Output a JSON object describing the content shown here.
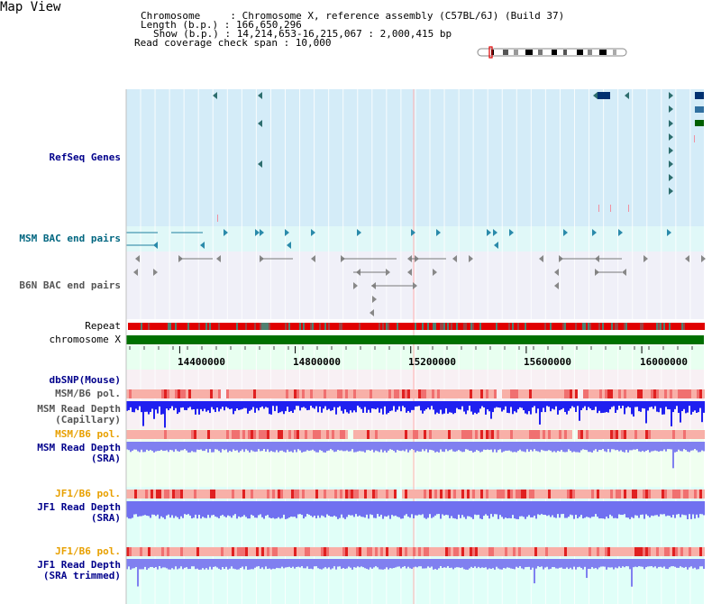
{
  "map_title": "Map View",
  "header": {
    "line1": "Chromosome     : Chromosome X, reference assembly (C57BL/6J) (Build 37)",
    "line2": "Length (b.p.) : 166,650,296",
    "line3": "Show (b.p.) : 14,214,653-16,215,067 : 2,000,415 bp",
    "line4": "Read coverage check span : 10,000"
  },
  "tracks": {
    "refseq": "RefSeq Genes",
    "msm_bac": "MSM BAC end pairs",
    "b6n_bac": "B6N BAC end pairs",
    "repeat": "Repeat",
    "chromosome": "chromosome X",
    "dbsnp": "dbSNP(Mouse)",
    "msm_b6_pol_1": "MSM/B6 pol.",
    "msm_read_depth_cap_1": "MSM Read Depth",
    "msm_read_depth_cap_2": "(Capillary)",
    "msm_b6_pol_2": "MSM/B6 pol.",
    "msm_read_depth_sra_1": "MSM Read Depth",
    "msm_read_depth_sra_2": "(SRA)",
    "jf1_b6_pol_1": "JF1/B6 pol.",
    "jf1_read_depth_sra_1": "JF1 Read Depth",
    "jf1_read_depth_sra_2": "(SRA)",
    "jf1_b6_pol_2": "JF1/B6 pol.",
    "jf1_read_depth_trim_1": "JF1 Read Depth",
    "jf1_read_depth_trim_2": "(SRA trimmed)"
  },
  "axis": {
    "ticks": [
      "14400000",
      "14800000",
      "15200000",
      "15600000",
      "16000000"
    ],
    "tick_values": [
      14400000,
      14800000,
      15200000,
      15600000,
      16000000
    ],
    "range": [
      14214653,
      16215067
    ]
  },
  "colors": {
    "refseq_bg": "#d4ecf8",
    "msm_bac_bg": "#e0f8f8",
    "b6n_bac_bg": "#f0f0f8",
    "chromosome_bar": "#007000",
    "depth_blue": "#2020f0",
    "depth_light": "#7070f0",
    "pol_red": "#f08080",
    "sra_bg": "#f0fff0",
    "jf_bg": "#e0fff8"
  }
}
